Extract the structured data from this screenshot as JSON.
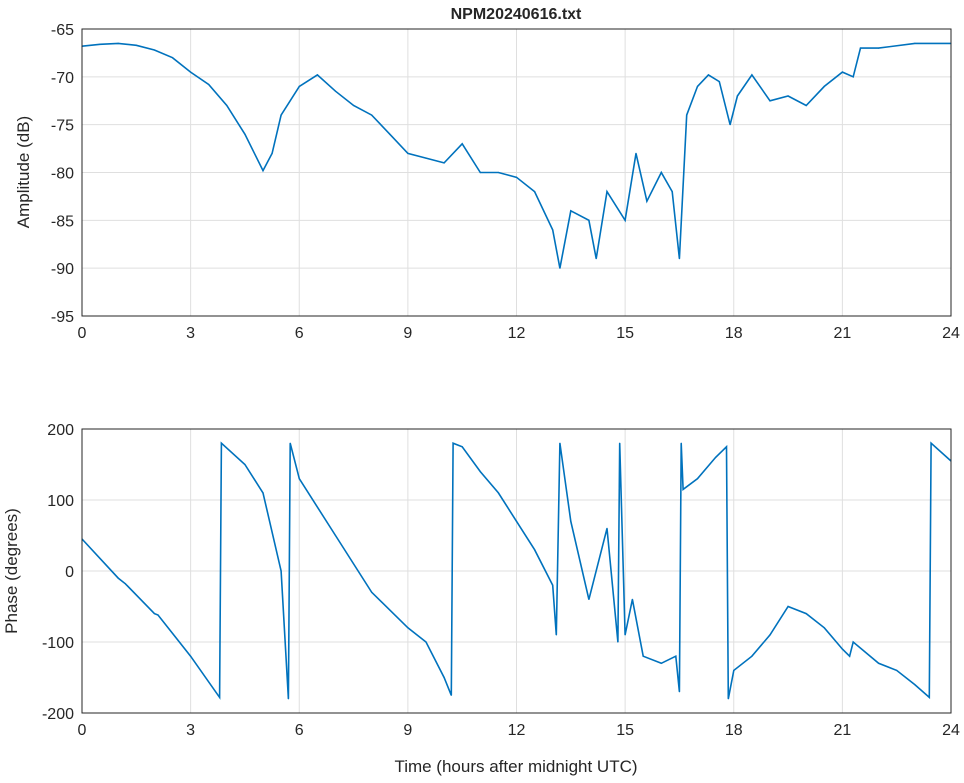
{
  "chart_data": [
    {
      "type": "line",
      "title": "NPM20240616.txt",
      "xlabel": "",
      "ylabel": "Amplitude (dB)",
      "xlim": [
        0,
        24
      ],
      "ylim": [
        -95,
        -65
      ],
      "xticks": [
        0,
        3,
        6,
        9,
        12,
        15,
        18,
        21,
        24
      ],
      "yticks": [
        -95,
        -90,
        -85,
        -80,
        -75,
        -70,
        -65
      ],
      "grid": true,
      "color": "#0072BD",
      "series": [
        {
          "name": "Amplitude",
          "x": [
            0,
            0.5,
            1,
            1.5,
            2,
            2.5,
            3,
            3.5,
            4,
            4.5,
            5,
            5.25,
            5.5,
            6,
            6.5,
            7,
            7.5,
            8,
            8.5,
            9,
            9.5,
            10,
            10.5,
            11,
            11.5,
            12,
            12.5,
            13,
            13.2,
            13.5,
            14,
            14.2,
            14.5,
            15,
            15.3,
            15.6,
            16,
            16.3,
            16.5,
            16.7,
            17,
            17.3,
            17.6,
            17.9,
            18.1,
            18.5,
            19,
            19.5,
            20,
            20.5,
            21,
            21.3,
            21.5,
            22,
            23,
            24
          ],
          "y": [
            -66.8,
            -66.6,
            -66.5,
            -66.7,
            -67.2,
            -68,
            -69.5,
            -70.8,
            -73,
            -76,
            -79.8,
            -78,
            -74,
            -71,
            -69.8,
            -71.5,
            -73,
            -74,
            -76,
            -78,
            -78.5,
            -79,
            -77,
            -80,
            -80,
            -80.5,
            -82,
            -86,
            -90,
            -84,
            -85,
            -89,
            -82,
            -85,
            -78,
            -83,
            -80,
            -82,
            -89,
            -74,
            -71,
            -69.8,
            -70.5,
            -75,
            -72,
            -69.8,
            -72.5,
            -72,
            -73,
            -71,
            -69.5,
            -70,
            -67,
            -67,
            -66.5,
            -66.5
          ]
        }
      ]
    },
    {
      "type": "line",
      "title": "",
      "xlabel": "Time (hours after midnight UTC)",
      "ylabel": "Phase (degrees)",
      "xlim": [
        0,
        24
      ],
      "ylim": [
        -200,
        200
      ],
      "xticks": [
        0,
        3,
        6,
        9,
        12,
        15,
        18,
        21,
        24
      ],
      "yticks": [
        -200,
        -100,
        0,
        100,
        200
      ],
      "grid": true,
      "color": "#0072BD",
      "series": [
        {
          "name": "Phase",
          "x": [
            0,
            1,
            1.2,
            2,
            2.1,
            3,
            3.8,
            3.85,
            4.5,
            5,
            5.5,
            5.7,
            5.75,
            6,
            7,
            8,
            9,
            9.5,
            10,
            10.2,
            10.25,
            10.5,
            11,
            11.5,
            12,
            12.5,
            13,
            13.1,
            13.2,
            13.5,
            14,
            14.5,
            14.8,
            14.85,
            15,
            15.2,
            15.5,
            16,
            16.4,
            16.5,
            16.55,
            16.6,
            17,
            17.5,
            17.8,
            17.85,
            18,
            18.5,
            19,
            19.5,
            20,
            20.5,
            21,
            21.2,
            21.3,
            22,
            22.5,
            23,
            23.4,
            23.45,
            24
          ],
          "y": [
            45,
            -10,
            -18,
            -60,
            -62,
            -120,
            -178,
            180,
            150,
            110,
            0,
            -180,
            180,
            130,
            50,
            -30,
            -80,
            -100,
            -150,
            -175,
            180,
            175,
            140,
            110,
            70,
            30,
            -20,
            -90,
            180,
            70,
            -40,
            60,
            -100,
            180,
            -90,
            -40,
            -120,
            -130,
            -120,
            -170,
            180,
            115,
            130,
            160,
            175,
            -180,
            -140,
            -120,
            -90,
            -50,
            -60,
            -80,
            -110,
            -120,
            -100,
            -130,
            -140,
            -160,
            -178,
            180,
            155
          ]
        }
      ]
    }
  ]
}
